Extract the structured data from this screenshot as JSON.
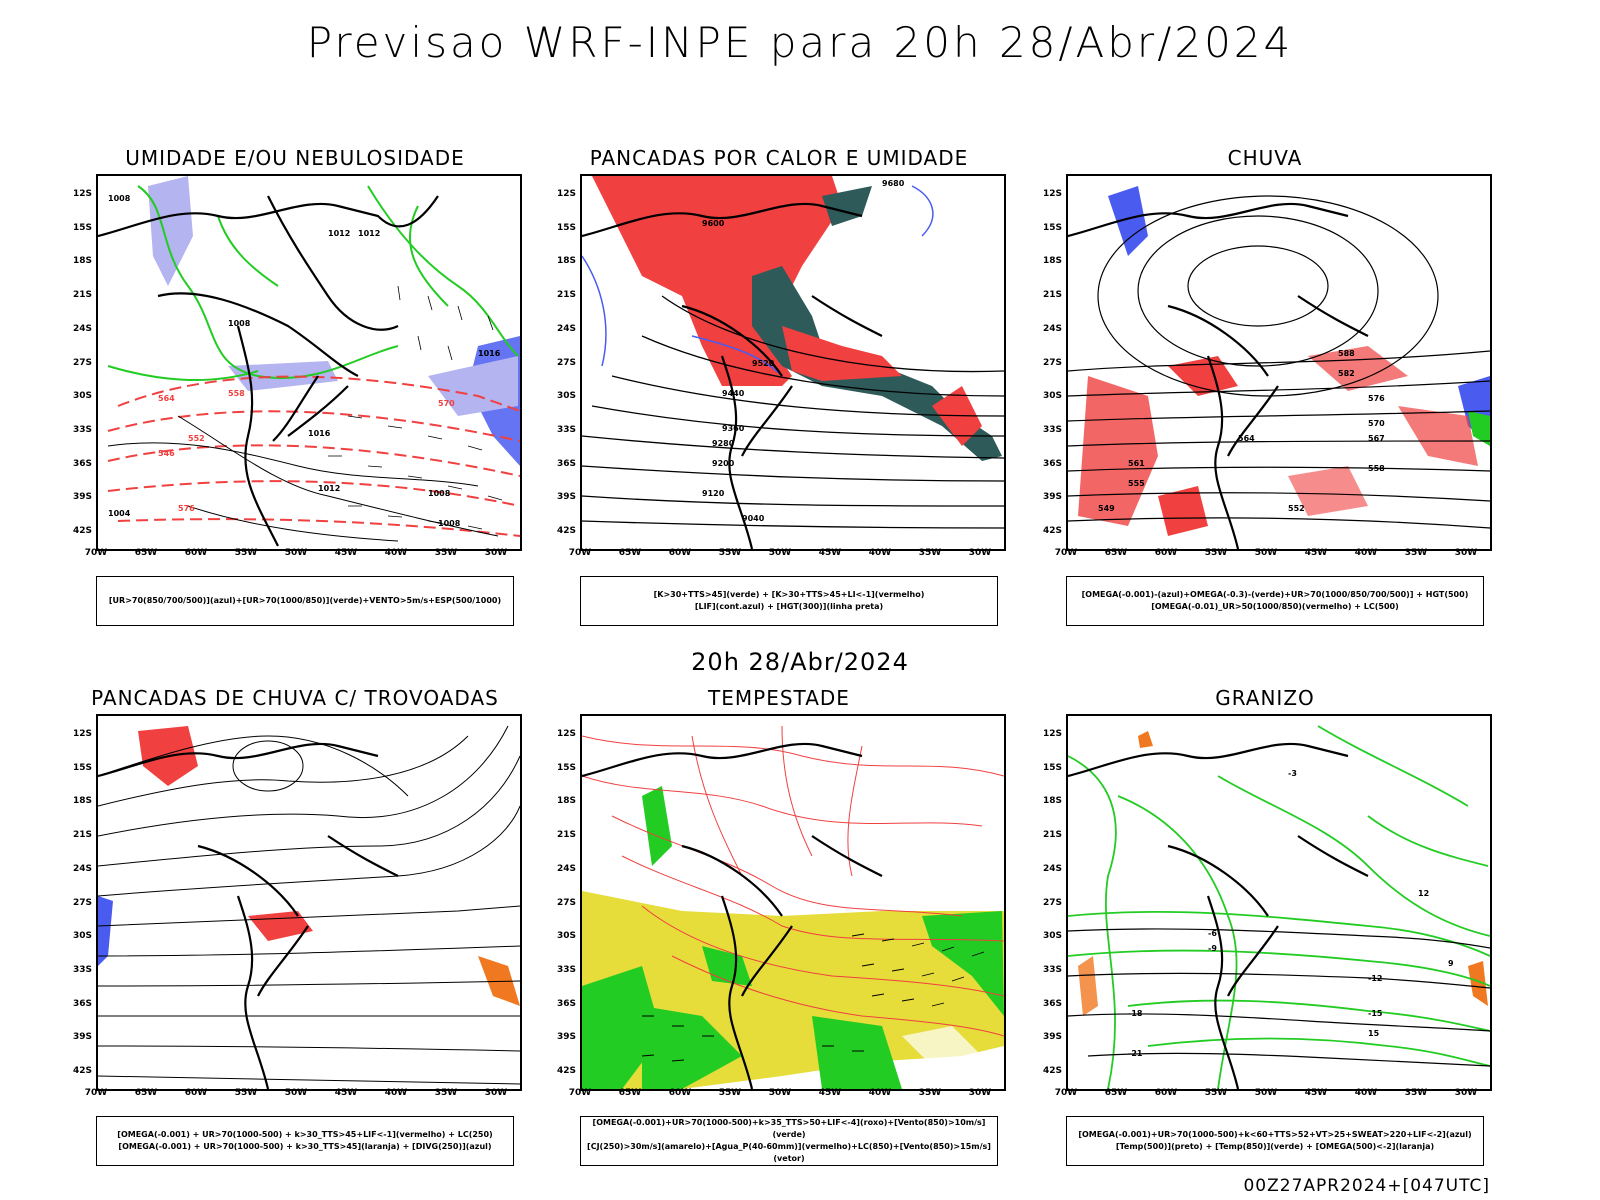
{
  "main_title": "Previsao WRF-INPE  para 20h 28/Abr/2024",
  "mid_title": "20h 28/Abr/2024",
  "footer": "00Z27APR2024+[047UTC]",
  "lat_ticks": [
    "12S",
    "15S",
    "18S",
    "21S",
    "24S",
    "27S",
    "30S",
    "33S",
    "36S",
    "39S",
    "42S"
  ],
  "lon_ticks": [
    "70W",
    "65W",
    "60W",
    "55W",
    "50W",
    "45W",
    "40W",
    "35W",
    "30W"
  ],
  "panels": [
    {
      "title": "UMIDADE E/OU NEBULOSIDADE",
      "legend": [
        "[UR>70(850/700/500)](azul)+[UR>70(1000/850)](verde)+VENTO>5m/s+ESP(500/1000)"
      ],
      "contour_labels": [
        "1008",
        "1012",
        "1008",
        "1016",
        "1012",
        "1008",
        "1004",
        "1008",
        "1012",
        "570",
        "564",
        "558",
        "552",
        "546",
        "576",
        "1016"
      ]
    },
    {
      "title": "PANCADAS POR CALOR E UMIDADE",
      "legend": [
        "[K>30+TTS>45](verde) + [K>30+TTS>45+LI<-1](vermelho)",
        "[LIF](cont.azul) + [HGT(300)](linha preta)"
      ],
      "contour_labels": [
        "9680",
        "9600",
        "9520",
        "9440",
        "9360",
        "9280",
        "9200",
        "9120",
        "9040"
      ]
    },
    {
      "title": "CHUVA",
      "legend": [
        "[OMEGA(-0.001)-(azul)+OMEGA(-0.3)-(verde)+UR>70(1000/850/700/500)] + HGT(500)",
        "[OMEGA(-0.01)_UR>50(1000/850)(vermelho) + LC(500)"
      ],
      "contour_labels": [
        "588",
        "582",
        "576",
        "570",
        "567",
        "564",
        "561",
        "558",
        "555",
        "552",
        "549"
      ]
    },
    {
      "title": "PANCADAS DE CHUVA C/ TROVOADAS",
      "legend": [
        "[OMEGA(-0.001) + UR>70(1000-500) + k>30_TTS>45+LIF<-1](vermelho) + LC(250)",
        "[OMEGA(-0.001) + UR>70(1000-500) + k>30_TTS>45](laranja) + [DIVG(250)](azul)"
      ],
      "contour_labels": []
    },
    {
      "title": "TEMPESTADE",
      "legend": [
        "[OMEGA(-0.001)+UR>70(1000-500)+k>35_TTS>50+LIF<-4](roxo)+[Vento(850)>10m/s](verde)",
        "[CJ(250)>30m/s](amarelo)+[Agua_P(40-60mm)](vermelho)+LC(850)+[Vento(850)>15m/s](vetor)"
      ],
      "contour_labels": []
    },
    {
      "title": "GRANIZO",
      "legend": [
        "[OMEGA(-0.001)+UR>70(1000-500)+k<60+TTS>52+VT>25+SWEAT>220+LIF<-2](azul)",
        "[Temp(500)](preto) + [Temp(850)](verde) + [OMEGA(500)<-2](laranja)"
      ],
      "contour_labels": [
        "-3",
        "-6",
        "-9",
        "-12",
        "-15",
        "-18",
        "-21",
        "15",
        "12",
        "9"
      ]
    }
  ],
  "colors": {
    "blue": "#4a5cf0",
    "lightblue": "#b4b4f0",
    "green": "#22cc22",
    "red": "#f04040",
    "darkteal": "#2f5a5a",
    "yellow": "#e6dc3a",
    "orange": "#f07820",
    "black": "#000000"
  }
}
